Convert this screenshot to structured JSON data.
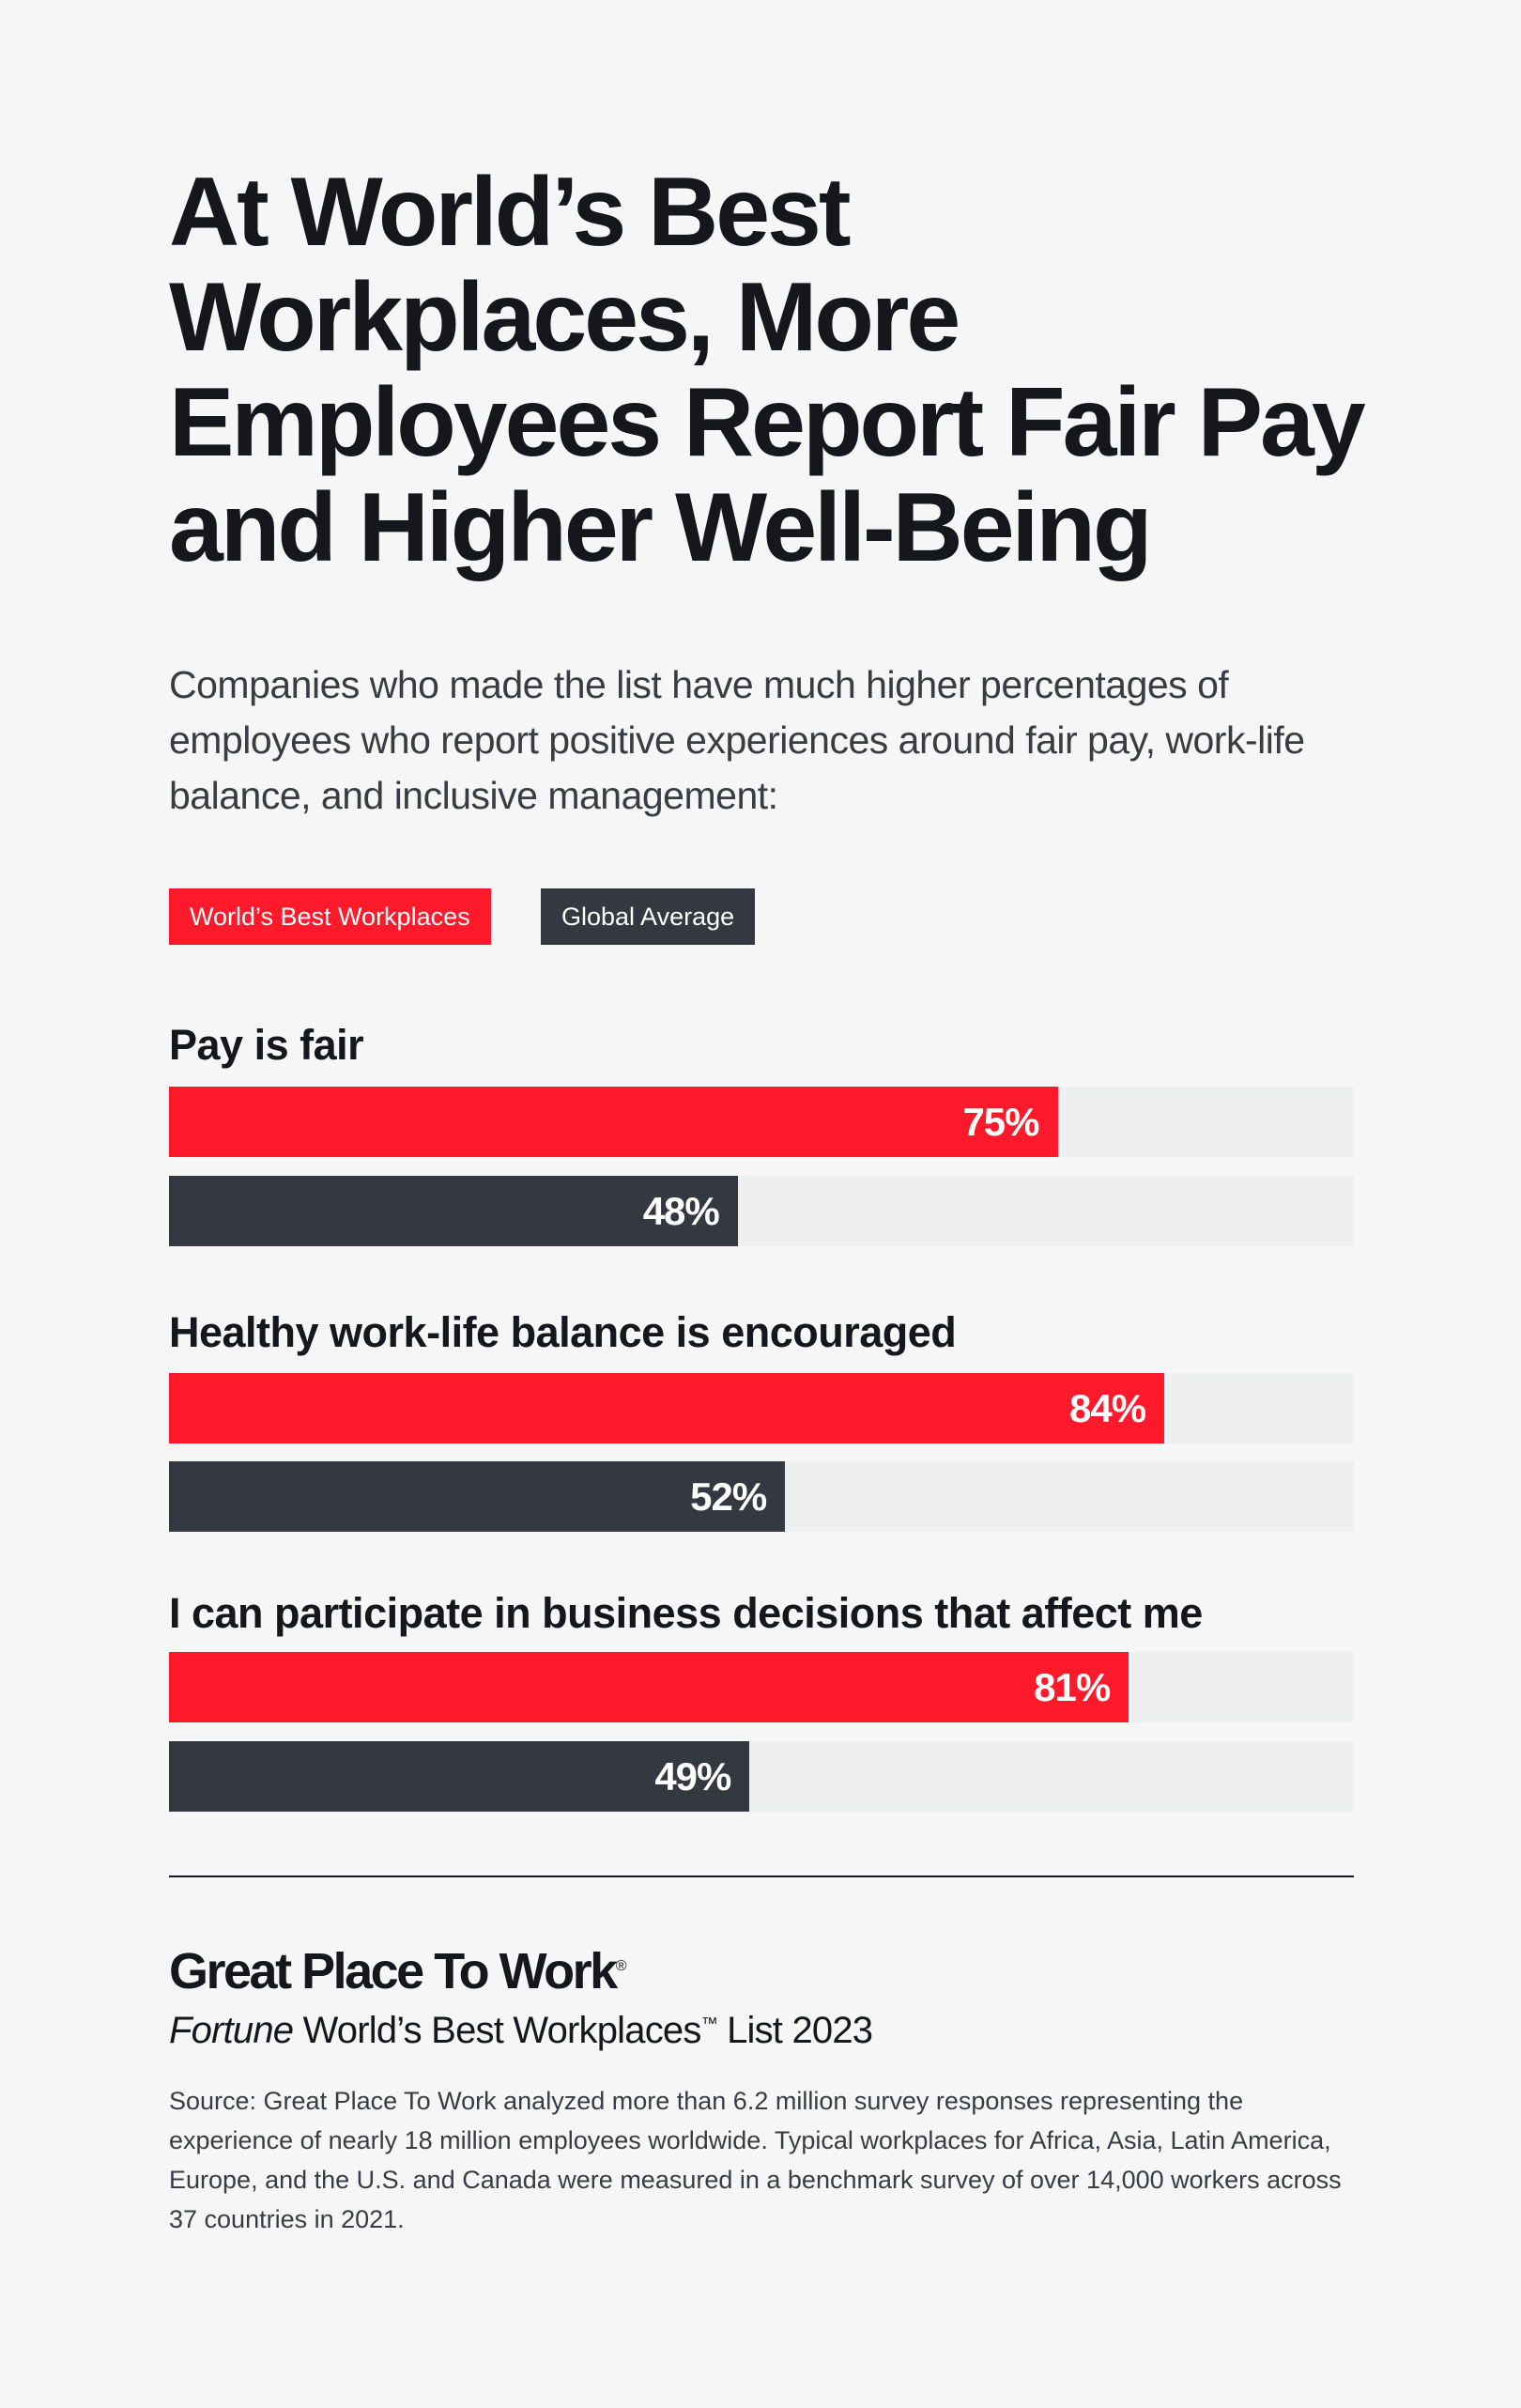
{
  "chart_data": {
    "type": "bar",
    "orientation": "horizontal",
    "title": "At World’s Best Workplaces, More Employees Report Fair Pay and Higher Well-Being",
    "subtitle": "Companies who made the list have much higher percentages of employees who report positive experiences around fair pay, work-life balance, and inclusive management:",
    "categories": [
      "Pay is fair",
      "Healthy work-life balance is encouraged",
      "I can participate in business decisions that affect me"
    ],
    "series": [
      {
        "name": "World’s Best Workplaces",
        "color": "#ff1a2b",
        "values": [
          75,
          84,
          81
        ],
        "labels": [
          "75%",
          "84%",
          "81%"
        ]
      },
      {
        "name": "Global Average",
        "color": "#343840",
        "values": [
          48,
          52,
          49
        ],
        "labels": [
          "48%",
          "52%",
          "49%"
        ]
      }
    ],
    "xlim": [
      0,
      100
    ],
    "unit": "%",
    "legend_placement": "top-left",
    "grid": false,
    "track_color": "#edf0ef"
  },
  "footer": {
    "logo": "Great Place To Work",
    "logo_mark": "®",
    "list_italic": "Fortune",
    "list_rest": " World’s Best Workplaces",
    "list_tm": "™",
    "list_year": " List 2023",
    "source": "Source: Great Place To Work analyzed more than 6.2 million survey responses representing the experience of nearly 18 million employees worldwide. Typical workplaces for Africa, Asia, Latin America, Europe, and the U.S. and Canada were measured in a benchmark survey of over 14,000 workers across 37 countries in 2021."
  }
}
